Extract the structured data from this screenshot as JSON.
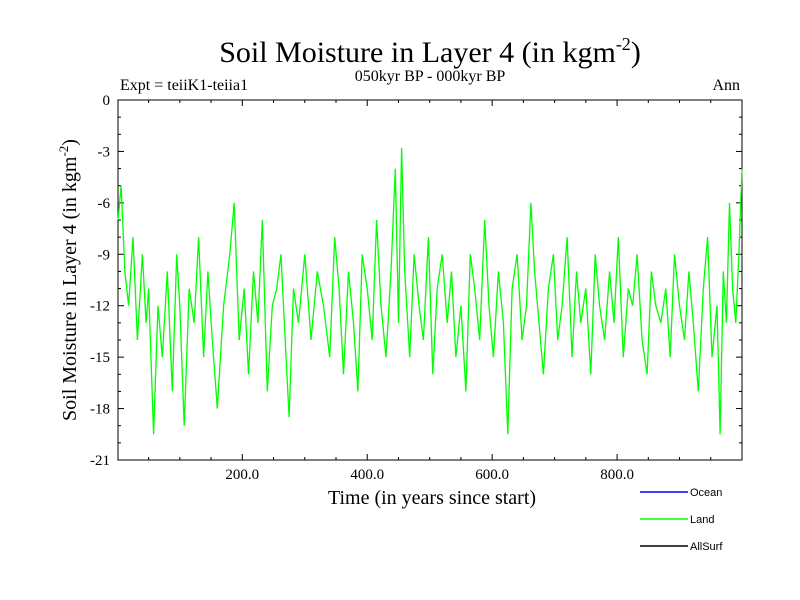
{
  "chart_data": {
    "type": "line",
    "title": "Soil Moisture in Layer 4 (in kgm",
    "title_sup": "-2",
    "title_close": ")",
    "subtitle": "050kyr BP - 000kyr BP",
    "left_label": "Expt = teiiK1-teiia1",
    "right_label": "Ann",
    "xlabel": "Time (in years since start)",
    "ylabel": "Soil Moisture in Layer 4 (in kgm",
    "ylabel_sup": "-2",
    "ylabel_close": ")",
    "xlim": [
      1,
      1000
    ],
    "ylim": [
      -21,
      0
    ],
    "x_ticks": [
      200,
      400,
      600,
      800
    ],
    "x_tick_labels": [
      "200.0",
      "400.0",
      "600.0",
      "800.0"
    ],
    "y_ticks": [
      0,
      -3,
      -6,
      -9,
      -12,
      -15,
      -18,
      -21
    ],
    "y_tick_labels": [
      "0",
      "-3",
      "-6",
      "-9",
      "-12",
      "-15",
      "-18",
      "-21"
    ],
    "grid": false,
    "legend_position": "bottom-right",
    "series": [
      {
        "name": "Ocean",
        "color": "#0000ff",
        "values": []
      },
      {
        "name": "Land",
        "color": "#00ff00",
        "x": [
          1,
          6,
          12,
          18,
          25,
          32,
          40,
          46,
          50,
          58,
          65,
          72,
          80,
          88,
          95,
          100,
          107,
          115,
          123,
          130,
          138,
          145,
          152,
          160,
          170,
          180,
          187,
          195,
          203,
          210,
          218,
          225,
          232,
          240,
          248,
          255,
          262,
          270,
          275,
          282,
          290,
          300,
          310,
          320,
          330,
          340,
          348,
          355,
          362,
          370,
          378,
          385,
          392,
          400,
          408,
          415,
          422,
          430,
          438,
          445,
          450,
          455,
          460,
          468,
          475,
          483,
          490,
          498,
          505,
          512,
          520,
          528,
          535,
          542,
          550,
          558,
          565,
          572,
          580,
          588,
          595,
          602,
          610,
          618,
          625,
          632,
          640,
          648,
          655,
          662,
          668,
          675,
          682,
          690,
          698,
          705,
          712,
          720,
          728,
          735,
          742,
          750,
          758,
          765,
          772,
          780,
          788,
          795,
          802,
          810,
          818,
          825,
          832,
          840,
          848,
          855,
          862,
          870,
          878,
          885,
          892,
          900,
          908,
          915,
          922,
          930,
          938,
          945,
          952,
          960,
          965,
          970,
          975,
          980,
          985,
          990,
          995,
          1000
        ],
        "values": [
          -7,
          -5,
          -10,
          -12,
          -8,
          -14,
          -9,
          -13,
          -11,
          -19.5,
          -12,
          -15,
          -10,
          -17,
          -9,
          -12,
          -19,
          -11,
          -13,
          -8,
          -15,
          -10,
          -14,
          -18,
          -12,
          -9,
          -6,
          -14,
          -11,
          -16,
          -10,
          -13,
          -7,
          -17,
          -12,
          -11,
          -9,
          -15,
          -18.5,
          -11,
          -13,
          -9,
          -14,
          -10,
          -12,
          -15,
          -8,
          -11,
          -16,
          -10,
          -13,
          -17,
          -9,
          -11,
          -14,
          -7,
          -12,
          -15,
          -10,
          -4,
          -13,
          -2.8,
          -10,
          -15,
          -9,
          -12,
          -14,
          -8,
          -16,
          -11,
          -9,
          -13,
          -10,
          -15,
          -12,
          -17,
          -9,
          -11,
          -14,
          -7,
          -12,
          -15,
          -10,
          -13,
          -19.5,
          -11,
          -9,
          -14,
          -12,
          -6,
          -10,
          -13,
          -16,
          -11,
          -9,
          -14,
          -12,
          -8,
          -15,
          -10,
          -13,
          -11,
          -16,
          -9,
          -12,
          -14,
          -10,
          -13,
          -8,
          -15,
          -11,
          -12,
          -9,
          -14,
          -16,
          -10,
          -12,
          -13,
          -11,
          -15,
          -9,
          -12,
          -14,
          -10,
          -13,
          -17,
          -11,
          -8,
          -15,
          -12,
          -19.5,
          -10,
          -13,
          -6,
          -11,
          -13,
          -9,
          -4
        ]
      },
      {
        "name": "AllSurf",
        "color": "#000000",
        "values": []
      }
    ]
  }
}
